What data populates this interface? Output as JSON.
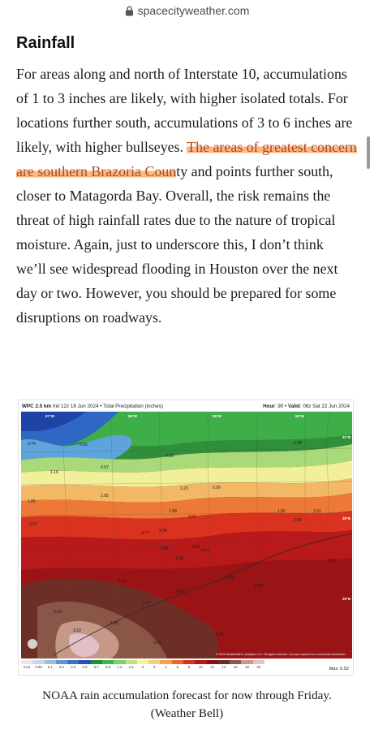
{
  "browser": {
    "url": "spacecityweather.com",
    "lock_icon": "lock-icon"
  },
  "article": {
    "heading": "Rainfall",
    "para_before": "For areas along and north of Interstate 10, accumulations of 1 to 3 inches are likely, with higher isolated totals. For locations further south, accumulations of 3 to 6 inches are likely, with higher bullseyes. ",
    "para_highlight": "The areas of greatest concern are southern Brazoria Coun",
    "para_after": "ty and points further south, closer to Matagorda Bay. Overall, the risk remains the threat of high rainfall rates due to the nature of tropical moisture. Again, just to underscore this, I don’t think we’ll see widespread flooding in Houston over the next day or two. However, you should be prepared for some disruptions on roadways.",
    "highlight_color": "#fab782"
  },
  "figure": {
    "header_left_bold": "WPC 2.5 km",
    "header_left": " Init 12z 18 Jun 2024 • Total Precipitation (inches)",
    "header_right_bold1": "Hour",
    "header_right1": ": 90 • ",
    "header_right_bold2": "Valid",
    "header_right2": ": 06z Sat 22 Jun 2024",
    "longitudes": [
      "97°W",
      "96°W",
      "95°W",
      "94°W"
    ],
    "latitudes": [
      "31°N",
      "30°N",
      "29°N"
    ],
    "values": [
      "0.74",
      "0.92",
      "1.16",
      "0.97",
      "0.58",
      "0.34",
      "1.65",
      "1.23",
      "0.99",
      "1.05",
      "2.37",
      "1.89",
      "2.01",
      "1.80",
      "2.90",
      "1.51",
      "3.77",
      "2.34",
      "3.84",
      "4.32",
      "3.80",
      "4.14",
      "3.65",
      "4.29",
      "4.18",
      "5.13",
      "5.74",
      "3.98",
      "3.93",
      "3.19",
      "5.76",
      "6.07",
      "5.39"
    ],
    "scale_ticks": [
      "0.01",
      "0.05",
      "0.1",
      "0.2",
      "0.3",
      "0.5",
      "0.7",
      "0.9",
      "1.2",
      "1.6",
      "2",
      "3",
      "4",
      "6",
      "8",
      "10",
      "12",
      "14",
      "16",
      "18",
      "20"
    ],
    "copyright": "© 2024 WeatherBELL Analytics LLC. All rights reserved. License required for commercial distribution.",
    "max_label": "Max: 6.52",
    "scale_colors": [
      "#e8e8e8",
      "#c8d8e8",
      "#9bbfe0",
      "#5d95d2",
      "#3c6fc2",
      "#2a4fb0",
      "#1f8f3a",
      "#3fb548",
      "#7ad26a",
      "#c7e07e",
      "#f5f2a3",
      "#f3d27a",
      "#f0a058",
      "#e7672e",
      "#d7321f",
      "#b21818",
      "#8a1010",
      "#6e2a2a",
      "#8a5a4a",
      "#c89a8a",
      "#e3c2cc"
    ]
  },
  "caption": {
    "line1": "NOAA rain accumulation forecast for now through Friday.",
    "line2": "(Weather Bell)"
  }
}
